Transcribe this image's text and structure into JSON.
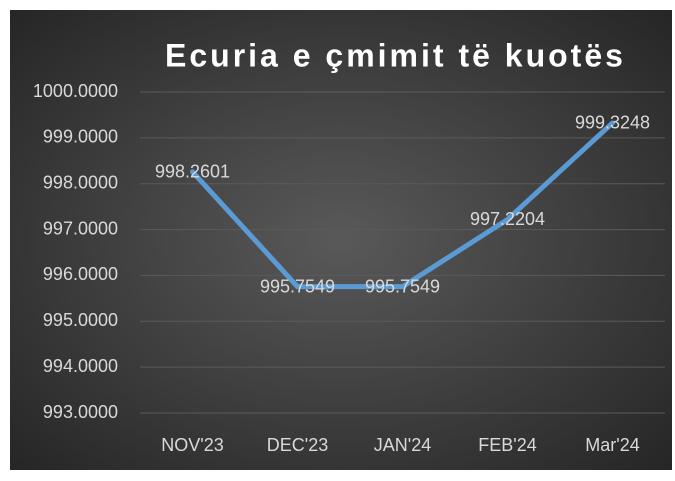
{
  "chart_data": {
    "type": "line",
    "title": "Ecuria e çmimit të kuotës",
    "categories": [
      "NOV'23",
      "DEC'23",
      "JAN'24",
      "FEB'24",
      "Mar'24"
    ],
    "values": [
      998.2601,
      995.7549,
      995.7549,
      997.2204,
      999.3248
    ],
    "color": "#5b9bd5",
    "ylim": [
      993,
      1000
    ],
    "yticks": [
      {
        "value": 993,
        "label": "993.0000"
      },
      {
        "value": 994,
        "label": "994.0000"
      },
      {
        "value": 995,
        "label": "995.0000"
      },
      {
        "value": 996,
        "label": "996.0000"
      },
      {
        "value": 997,
        "label": "997.0000"
      },
      {
        "value": 998,
        "label": "998.0000"
      },
      {
        "value": 999,
        "label": "999.0000"
      },
      {
        "value": 1000,
        "label": "1000.0000"
      }
    ],
    "grid": true
  }
}
